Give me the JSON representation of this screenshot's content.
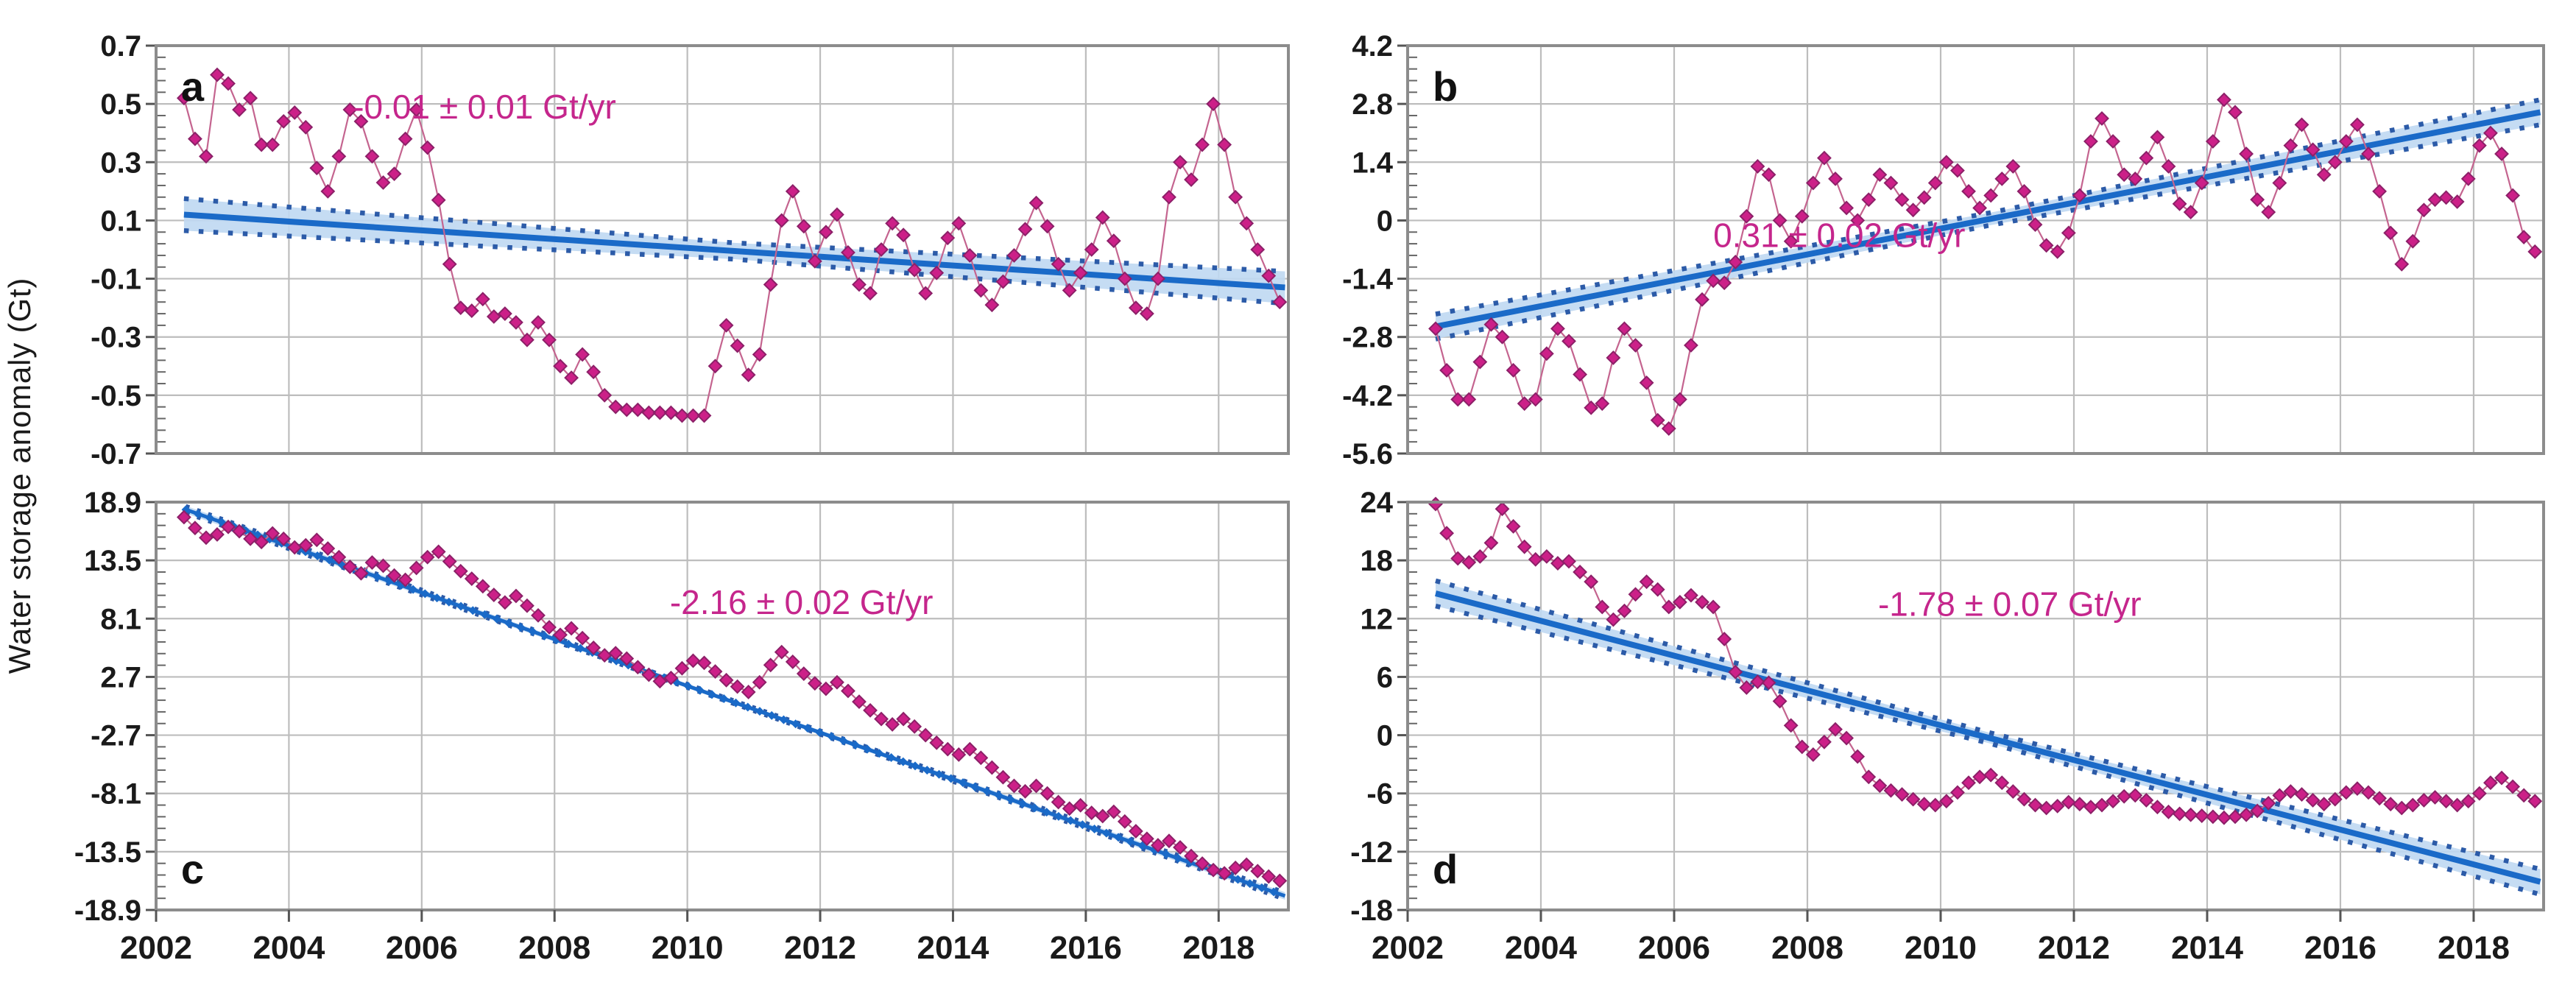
{
  "figure": {
    "ylabel": "Water storage anomaly (Gt)",
    "background": "#ffffff",
    "colors": {
      "marker_fill": "#CC2088",
      "marker_edge": "#8C2068",
      "series_line": "#C4648F",
      "trend_line": "#1A6AC8",
      "band_fill": "#BFD8F2",
      "band_edge_dots": "#2C5BA8",
      "grid": "#BDBDBD",
      "border": "#8C8C8C",
      "tick_text": "#1A1A1A",
      "annotation_text": "#C5268C",
      "panel_letter": "#111111"
    }
  },
  "chart_data": [
    {
      "type": "line",
      "panel_letter": "a",
      "annotation": "-0.01 ± 0.01 Gt/yr",
      "annotation_frac": [
        0.29,
        0.15
      ],
      "letter_frac": [
        0.022,
        0.1
      ],
      "xlim": [
        2002,
        2019.05
      ],
      "ylim": [
        -0.7,
        0.7
      ],
      "xticks": [
        2002,
        2004,
        2006,
        2008,
        2010,
        2012,
        2014,
        2016,
        2018
      ],
      "xtick_labels": [
        "2002",
        "2004",
        "2006",
        "2008",
        "2010",
        "2012",
        "2014",
        "2016",
        "2018"
      ],
      "show_xtick_labels": false,
      "yticks": [
        0.7,
        0.5,
        0.3,
        0.1,
        -0.1,
        -0.3,
        -0.5,
        -0.7
      ],
      "ytick_labels": [
        "0.7",
        "0.5",
        "0.3",
        "0.1",
        "-0.1",
        "-0.3",
        "-0.5",
        "-0.7"
      ],
      "trend": {
        "x0": 2002.42,
        "x1": 2019.0,
        "y0": 0.12,
        "y1": -0.13,
        "band_half": [
          0.055,
          0.028,
          0.055
        ],
        "style": "line"
      },
      "series": {
        "x0": 2002.42,
        "dx": 0.16667,
        "values": [
          0.52,
          0.38,
          0.32,
          0.6,
          0.57,
          0.48,
          0.52,
          0.36,
          0.36,
          0.44,
          0.47,
          0.42,
          0.28,
          0.2,
          0.32,
          0.48,
          0.44,
          0.32,
          0.23,
          0.26,
          0.38,
          0.48,
          0.35,
          0.17,
          -0.05,
          -0.2,
          -0.21,
          -0.17,
          -0.23,
          -0.22,
          -0.25,
          -0.31,
          -0.25,
          -0.31,
          -0.4,
          -0.44,
          -0.36,
          -0.42,
          -0.5,
          -0.54,
          -0.55,
          -0.55,
          -0.56,
          -0.56,
          -0.56,
          -0.57,
          -0.57,
          -0.57,
          -0.4,
          -0.26,
          -0.33,
          -0.43,
          -0.36,
          -0.12,
          0.1,
          0.2,
          0.08,
          -0.04,
          0.06,
          0.12,
          -0.01,
          -0.12,
          -0.15,
          0.0,
          0.09,
          0.05,
          -0.07,
          -0.15,
          -0.08,
          0.04,
          0.09,
          -0.02,
          -0.14,
          -0.19,
          -0.11,
          -0.02,
          0.07,
          0.16,
          0.08,
          -0.05,
          -0.14,
          -0.08,
          0.0,
          0.11,
          0.03,
          -0.1,
          -0.2,
          -0.22,
          -0.1,
          0.18,
          0.3,
          0.24,
          0.36,
          0.5,
          0.36,
          0.18,
          0.09,
          0.0,
          -0.09,
          -0.18
        ]
      }
    },
    {
      "type": "line",
      "panel_letter": "b",
      "annotation": "0.31 ± 0.02 Gt/yr",
      "annotation_frac": [
        0.38,
        0.465
      ],
      "letter_frac": [
        0.022,
        0.1
      ],
      "xlim": [
        2002,
        2019.05
      ],
      "ylim": [
        -5.6,
        4.2
      ],
      "xticks": [
        2002,
        2004,
        2006,
        2008,
        2010,
        2012,
        2014,
        2016,
        2018
      ],
      "xtick_labels": [
        "2002",
        "2004",
        "2006",
        "2008",
        "2010",
        "2012",
        "2014",
        "2016",
        "2018"
      ],
      "show_xtick_labels": false,
      "yticks": [
        4.2,
        2.8,
        1.4,
        0,
        -1.4,
        -2.8,
        -4.2,
        -5.6
      ],
      "ytick_labels": [
        "4.2",
        "2.8",
        "1.4",
        "0",
        "-1.4",
        "-2.8",
        "-4.2",
        "-5.6"
      ],
      "trend": {
        "x0": 2002.42,
        "x1": 2019.0,
        "y0": -2.55,
        "y1": 2.6,
        "band_half": [
          0.3,
          0.15,
          0.3
        ],
        "style": "line"
      },
      "series": {
        "x0": 2002.42,
        "dx": 0.16667,
        "values": [
          -2.6,
          -3.6,
          -4.3,
          -4.3,
          -3.4,
          -2.5,
          -2.8,
          -3.6,
          -4.4,
          -4.3,
          -3.2,
          -2.6,
          -2.9,
          -3.7,
          -4.5,
          -4.4,
          -3.3,
          -2.6,
          -3.0,
          -3.9,
          -4.8,
          -5.0,
          -4.3,
          -3.0,
          -1.9,
          -1.45,
          -1.5,
          -1.0,
          0.1,
          1.3,
          1.1,
          0.0,
          -0.5,
          0.1,
          0.9,
          1.5,
          1.0,
          0.3,
          0.0,
          0.5,
          1.1,
          0.9,
          0.5,
          0.25,
          0.55,
          0.9,
          1.4,
          1.2,
          0.7,
          0.3,
          0.6,
          1.0,
          1.3,
          0.7,
          -0.1,
          -0.6,
          -0.75,
          -0.3,
          0.6,
          1.9,
          2.45,
          1.9,
          1.1,
          1.0,
          1.5,
          2.0,
          1.3,
          0.4,
          0.2,
          0.9,
          1.9,
          2.9,
          2.6,
          1.6,
          0.5,
          0.2,
          0.9,
          1.8,
          2.3,
          1.7,
          1.1,
          1.4,
          1.9,
          2.3,
          1.6,
          0.7,
          -0.3,
          -1.05,
          -0.5,
          0.25,
          0.5,
          0.55,
          0.45,
          1.0,
          1.8,
          2.1,
          1.6,
          0.6,
          -0.4,
          -0.75
        ]
      }
    },
    {
      "type": "line",
      "panel_letter": "c",
      "annotation": "-2.16 ± 0.02 Gt/yr",
      "annotation_frac": [
        0.57,
        0.245
      ],
      "letter_frac": [
        0.022,
        0.9
      ],
      "xlim": [
        2002,
        2019.05
      ],
      "ylim": [
        -18.9,
        18.9
      ],
      "xticks": [
        2002,
        2004,
        2006,
        2008,
        2010,
        2012,
        2014,
        2016,
        2018
      ],
      "xtick_labels": [
        "2002",
        "2004",
        "2006",
        "2008",
        "2010",
        "2012",
        "2014",
        "2016",
        "2018"
      ],
      "show_xtick_labels": true,
      "yticks": [
        18.9,
        13.5,
        8.1,
        2.7,
        -2.7,
        -8.1,
        -13.5,
        -18.9
      ],
      "ytick_labels": [
        "18.9",
        "13.5",
        "8.1",
        "2.7",
        "-2.7",
        "-8.1",
        "-13.5",
        "-18.9"
      ],
      "trend": {
        "x0": 2002.45,
        "x1": 2019.0,
        "y0": 18.2,
        "y1": -17.6,
        "band_half": [
          0.35,
          0.18,
          0.35
        ],
        "style": "markers"
      },
      "series": {
        "x0": 2002.42,
        "dx": 0.16667,
        "values": [
          17.5,
          16.5,
          15.6,
          15.9,
          16.6,
          16.2,
          15.5,
          15.2,
          16.0,
          15.5,
          14.7,
          14.9,
          15.4,
          14.6,
          13.8,
          12.9,
          12.3,
          13.3,
          13.0,
          12.1,
          11.7,
          12.8,
          13.8,
          14.3,
          13.4,
          12.5,
          11.8,
          11.1,
          10.3,
          9.6,
          10.2,
          9.3,
          8.4,
          7.3,
          6.6,
          7.2,
          6.3,
          5.4,
          4.7,
          4.9,
          4.4,
          3.6,
          2.9,
          2.3,
          2.6,
          3.5,
          4.2,
          4.0,
          3.2,
          2.4,
          1.8,
          1.3,
          2.2,
          3.8,
          5.0,
          4.1,
          3.0,
          2.1,
          1.6,
          2.2,
          1.4,
          0.4,
          -0.4,
          -1.2,
          -1.7,
          -1.2,
          -1.9,
          -2.7,
          -3.4,
          -4.0,
          -4.5,
          -4.0,
          -4.8,
          -5.7,
          -6.6,
          -7.4,
          -7.9,
          -7.4,
          -8.1,
          -8.9,
          -9.5,
          -9.2,
          -9.9,
          -10.2,
          -9.8,
          -10.7,
          -11.6,
          -12.3,
          -12.9,
          -12.5,
          -13.1,
          -13.9,
          -14.6,
          -15.2,
          -15.5,
          -15.0,
          -14.7,
          -15.3,
          -15.8,
          -16.2
        ]
      }
    },
    {
      "type": "line",
      "panel_letter": "d",
      "annotation": "-1.78 ± 0.07 Gt/yr",
      "annotation_frac": [
        0.53,
        0.25
      ],
      "letter_frac": [
        0.022,
        0.9
      ],
      "xlim": [
        2002,
        2019.05
      ],
      "ylim": [
        -18,
        24
      ],
      "xticks": [
        2002,
        2004,
        2006,
        2008,
        2010,
        2012,
        2014,
        2016,
        2018
      ],
      "xtick_labels": [
        "2002",
        "2004",
        "2006",
        "2008",
        "2010",
        "2012",
        "2014",
        "2016",
        "2018"
      ],
      "show_xtick_labels": true,
      "yticks": [
        24,
        18,
        12,
        6,
        0,
        -6,
        -12,
        -18
      ],
      "ytick_labels": [
        "24",
        "18",
        "12",
        "6",
        "0",
        "-6",
        "-12",
        "-18"
      ],
      "trend": {
        "x0": 2002.42,
        "x1": 2019.0,
        "y0": 14.6,
        "y1": -15.1,
        "band_half": [
          1.3,
          0.55,
          1.3
        ],
        "style": "line"
      },
      "series": {
        "x0": 2002.42,
        "dx": 0.16667,
        "values": [
          23.8,
          20.8,
          18.2,
          17.8,
          18.4,
          19.8,
          23.3,
          21.5,
          19.4,
          18.1,
          18.4,
          17.7,
          17.9,
          16.8,
          15.8,
          13.2,
          11.9,
          12.8,
          14.5,
          15.8,
          15.0,
          13.2,
          13.7,
          14.4,
          13.7,
          13.2,
          9.9,
          6.5,
          4.9,
          5.5,
          5.4,
          3.5,
          1.0,
          -1.2,
          -2.0,
          -0.7,
          0.6,
          -0.3,
          -2.2,
          -4.3,
          -5.2,
          -5.7,
          -6.1,
          -6.6,
          -7.1,
          -7.2,
          -6.8,
          -5.9,
          -4.9,
          -4.3,
          -4.1,
          -4.9,
          -5.8,
          -6.6,
          -7.2,
          -7.5,
          -7.3,
          -6.9,
          -7.1,
          -7.4,
          -7.2,
          -6.8,
          -6.3,
          -6.2,
          -6.7,
          -7.4,
          -7.9,
          -8.1,
          -8.2,
          -8.3,
          -8.4,
          -8.5,
          -8.4,
          -8.2,
          -7.8,
          -7.0,
          -6.2,
          -5.8,
          -6.1,
          -6.7,
          -7.1,
          -6.6,
          -5.9,
          -5.5,
          -5.9,
          -6.5,
          -7.1,
          -7.5,
          -7.2,
          -6.7,
          -6.4,
          -6.8,
          -7.2,
          -6.8,
          -6.0,
          -4.9,
          -4.4,
          -5.3,
          -6.2,
          -6.8
        ]
      }
    }
  ]
}
